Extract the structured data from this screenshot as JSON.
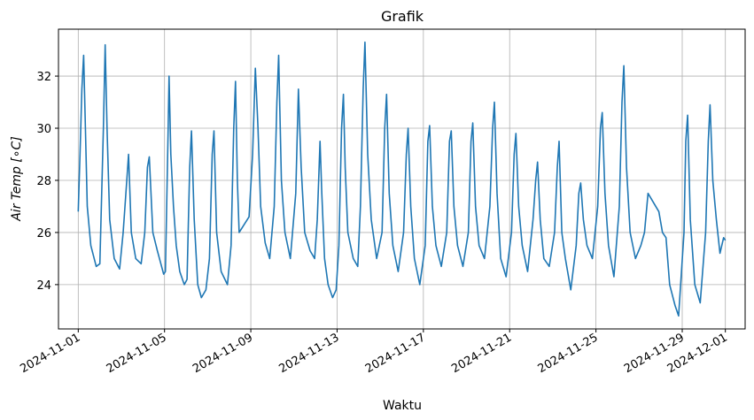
{
  "chart_data": {
    "type": "line",
    "title": "Grafik",
    "xlabel": "Waktu",
    "ylabel": "Air Temp [∘C]",
    "xlim": [
      "2024-10-31T02:00",
      "2024-12-01T22:00"
    ],
    "ylim": [
      22.3,
      33.8
    ],
    "grid": true,
    "legend": "none",
    "x_ticks": [
      "2024-11-01",
      "2024-11-05",
      "2024-11-09",
      "2024-11-13",
      "2024-11-17",
      "2024-11-21",
      "2024-11-25",
      "2024-11-29",
      "2024-12-01"
    ],
    "y_ticks": [
      24,
      26,
      28,
      30,
      32
    ],
    "series": [
      {
        "color": "#1f77b4",
        "points": [
          [
            "2024-11-01T00:00",
            26.8
          ],
          [
            "2024-11-01T02:00",
            29.0
          ],
          [
            "2024-11-01T04:00",
            31.5
          ],
          [
            "2024-11-01T06:00",
            32.8
          ],
          [
            "2024-11-01T08:00",
            30.0
          ],
          [
            "2024-11-01T10:00",
            27.0
          ],
          [
            "2024-11-01T14:00",
            25.5
          ],
          [
            "2024-11-01T20:00",
            24.7
          ],
          [
            "2024-11-02T00:00",
            24.8
          ],
          [
            "2024-11-02T04:00",
            30.0
          ],
          [
            "2024-11-02T06:00",
            33.2
          ],
          [
            "2024-11-02T08:00",
            30.0
          ],
          [
            "2024-11-02T11:00",
            26.5
          ],
          [
            "2024-11-02T16:00",
            25.0
          ],
          [
            "2024-11-02T22:00",
            24.6
          ],
          [
            "2024-11-03T02:00",
            26.0
          ],
          [
            "2024-11-03T06:00",
            28.0
          ],
          [
            "2024-11-03T08:00",
            29.0
          ],
          [
            "2024-11-03T11:00",
            26.0
          ],
          [
            "2024-11-03T16:00",
            25.0
          ],
          [
            "2024-11-03T22:00",
            24.8
          ],
          [
            "2024-11-04T02:00",
            26.0
          ],
          [
            "2024-11-04T05:00",
            28.5
          ],
          [
            "2024-11-04T07:00",
            28.9
          ],
          [
            "2024-11-04T11:00",
            26.0
          ],
          [
            "2024-11-04T16:00",
            25.3
          ],
          [
            "2024-11-04T23:00",
            24.4
          ],
          [
            "2024-11-05T01:00",
            24.5
          ],
          [
            "2024-11-05T04:00",
            30.0
          ],
          [
            "2024-11-05T05:00",
            32.0
          ],
          [
            "2024-11-05T07:00",
            29.0
          ],
          [
            "2024-11-05T10:00",
            27.0
          ],
          [
            "2024-11-05T13:00",
            25.5
          ],
          [
            "2024-11-05T17:00",
            24.5
          ],
          [
            "2024-11-05T22:00",
            24.0
          ],
          [
            "2024-11-06T01:00",
            24.2
          ],
          [
            "2024-11-06T04:00",
            28.5
          ],
          [
            "2024-11-06T06:00",
            29.9
          ],
          [
            "2024-11-06T09:00",
            26.5
          ],
          [
            "2024-11-06T13:00",
            24.0
          ],
          [
            "2024-11-06T17:00",
            23.5
          ],
          [
            "2024-11-06T22:00",
            23.8
          ],
          [
            "2024-11-07T02:00",
            25.0
          ],
          [
            "2024-11-07T05:00",
            29.0
          ],
          [
            "2024-11-07T07:00",
            29.9
          ],
          [
            "2024-11-07T10:00",
            26.0
          ],
          [
            "2024-11-07T15:00",
            24.5
          ],
          [
            "2024-11-07T22:00",
            24.0
          ],
          [
            "2024-11-08T02:00",
            25.5
          ],
          [
            "2024-11-08T05:00",
            30.0
          ],
          [
            "2024-11-08T07:00",
            31.8
          ],
          [
            "2024-11-08T09:00",
            28.0
          ],
          [
            "2024-11-08T11:00",
            26.0
          ],
          [
            "2024-11-08T22:00",
            26.6
          ],
          [
            "2024-11-09T02:00",
            29.0
          ],
          [
            "2024-11-09T05:00",
            32.3
          ],
          [
            "2024-11-09T08:00",
            30.0
          ],
          [
            "2024-11-09T11:00",
            27.0
          ],
          [
            "2024-11-09T16:00",
            25.6
          ],
          [
            "2024-11-09T21:00",
            25.0
          ],
          [
            "2024-11-10T02:00",
            27.0
          ],
          [
            "2024-11-10T05:00",
            31.0
          ],
          [
            "2024-11-10T07:00",
            32.8
          ],
          [
            "2024-11-10T10:00",
            28.0
          ],
          [
            "2024-11-10T14:00",
            26.0
          ],
          [
            "2024-11-10T20:00",
            25.0
          ],
          [
            "2024-11-11T02:00",
            27.5
          ],
          [
            "2024-11-11T05:00",
            31.5
          ],
          [
            "2024-11-11T08:00",
            28.5
          ],
          [
            "2024-11-11T12:00",
            26.0
          ],
          [
            "2024-11-11T18:00",
            25.3
          ],
          [
            "2024-11-11T23:00",
            25.0
          ],
          [
            "2024-11-12T02:00",
            26.5
          ],
          [
            "2024-11-12T05:00",
            29.5
          ],
          [
            "2024-11-12T07:00",
            27.5
          ],
          [
            "2024-11-12T10:00",
            25.0
          ],
          [
            "2024-11-12T14:00",
            24.0
          ],
          [
            "2024-11-12T19:00",
            23.5
          ],
          [
            "2024-11-12T23:00",
            23.8
          ],
          [
            "2024-11-13T02:00",
            25.5
          ],
          [
            "2024-11-13T05:00",
            30.0
          ],
          [
            "2024-11-13T07:00",
            31.3
          ],
          [
            "2024-11-13T09:00",
            28.5
          ],
          [
            "2024-11-13T12:00",
            26.0
          ],
          [
            "2024-11-13T18:00",
            25.0
          ],
          [
            "2024-11-13T23:00",
            24.7
          ],
          [
            "2024-11-14T02:00",
            27.0
          ],
          [
            "2024-11-14T05:00",
            31.5
          ],
          [
            "2024-11-14T07:00",
            33.3
          ],
          [
            "2024-11-14T10:00",
            29.0
          ],
          [
            "2024-11-14T14:00",
            26.5
          ],
          [
            "2024-11-14T20:00",
            25.0
          ],
          [
            "2024-11-15T02:00",
            26.0
          ],
          [
            "2024-11-15T05:00",
            30.0
          ],
          [
            "2024-11-15T07:00",
            31.3
          ],
          [
            "2024-11-15T10:00",
            27.5
          ],
          [
            "2024-11-15T14:00",
            25.5
          ],
          [
            "2024-11-15T20:00",
            24.5
          ],
          [
            "2024-11-16T02:00",
            26.0
          ],
          [
            "2024-11-16T05:00",
            29.0
          ],
          [
            "2024-11-16T07:00",
            30.0
          ],
          [
            "2024-11-16T10:00",
            27.0
          ],
          [
            "2024-11-16T14:00",
            25.0
          ],
          [
            "2024-11-16T20:00",
            24.0
          ],
          [
            "2024-11-17T02:00",
            25.5
          ],
          [
            "2024-11-17T05:00",
            29.5
          ],
          [
            "2024-11-17T07:00",
            30.1
          ],
          [
            "2024-11-17T10:00",
            27.0
          ],
          [
            "2024-11-17T14:00",
            25.5
          ],
          [
            "2024-11-17T20:00",
            24.7
          ],
          [
            "2024-11-18T02:00",
            26.0
          ],
          [
            "2024-11-18T05:00",
            29.5
          ],
          [
            "2024-11-18T07:00",
            29.9
          ],
          [
            "2024-11-18T10:00",
            27.0
          ],
          [
            "2024-11-18T14:00",
            25.5
          ],
          [
            "2024-11-18T20:00",
            24.7
          ],
          [
            "2024-11-19T02:00",
            26.0
          ],
          [
            "2024-11-19T05:00",
            29.5
          ],
          [
            "2024-11-19T07:00",
            30.2
          ],
          [
            "2024-11-19T10:00",
            27.0
          ],
          [
            "2024-11-19T14:00",
            25.5
          ],
          [
            "2024-11-19T20:00",
            25.0
          ],
          [
            "2024-11-20T02:00",
            27.0
          ],
          [
            "2024-11-20T05:00",
            30.0
          ],
          [
            "2024-11-20T07:00",
            31.0
          ],
          [
            "2024-11-20T10:00",
            27.5
          ],
          [
            "2024-11-20T14:00",
            25.0
          ],
          [
            "2024-11-20T20:00",
            24.3
          ],
          [
            "2024-11-21T02:00",
            26.0
          ],
          [
            "2024-11-21T05:00",
            29.0
          ],
          [
            "2024-11-21T07:00",
            29.8
          ],
          [
            "2024-11-21T10:00",
            27.0
          ],
          [
            "2024-11-21T14:00",
            25.5
          ],
          [
            "2024-11-21T20:00",
            24.5
          ],
          [
            "2024-11-22T02:00",
            26.5
          ],
          [
            "2024-11-22T05:00",
            28.0
          ],
          [
            "2024-11-22T07:00",
            28.7
          ],
          [
            "2024-11-22T10:00",
            26.5
          ],
          [
            "2024-11-22T14:00",
            25.0
          ],
          [
            "2024-11-22T20:00",
            24.7
          ],
          [
            "2024-11-23T02:00",
            26.0
          ],
          [
            "2024-11-23T05:00",
            28.5
          ],
          [
            "2024-11-23T07:00",
            29.5
          ],
          [
            "2024-11-23T10:00",
            26.0
          ],
          [
            "2024-11-23T14:00",
            25.0
          ],
          [
            "2024-11-23T20:00",
            23.8
          ],
          [
            "2024-11-24T02:00",
            25.5
          ],
          [
            "2024-11-24T05:00",
            27.5
          ],
          [
            "2024-11-24T07:00",
            27.9
          ],
          [
            "2024-11-24T10:00",
            26.5
          ],
          [
            "2024-11-24T14:00",
            25.5
          ],
          [
            "2024-11-24T20:00",
            25.0
          ],
          [
            "2024-11-25T02:00",
            27.0
          ],
          [
            "2024-11-25T05:00",
            30.0
          ],
          [
            "2024-11-25T07:00",
            30.6
          ],
          [
            "2024-11-25T10:00",
            27.5
          ],
          [
            "2024-11-25T14:00",
            25.5
          ],
          [
            "2024-11-25T20:00",
            24.3
          ],
          [
            "2024-11-26T02:00",
            27.0
          ],
          [
            "2024-11-26T05:00",
            31.0
          ],
          [
            "2024-11-26T07:00",
            32.4
          ],
          [
            "2024-11-26T10:00",
            28.5
          ],
          [
            "2024-11-26T14:00",
            26.0
          ],
          [
            "2024-11-26T20:00",
            25.0
          ],
          [
            "2024-11-27T02:00",
            25.5
          ],
          [
            "2024-11-27T06:00",
            26.0
          ],
          [
            "2024-11-27T10:00",
            27.5
          ],
          [
            "2024-11-27T22:00",
            26.8
          ],
          [
            "2024-11-28T02:00",
            26.0
          ],
          [
            "2024-11-28T06:00",
            25.8
          ],
          [
            "2024-11-28T10:00",
            24.0
          ],
          [
            "2024-11-28T16:00",
            23.2
          ],
          [
            "2024-11-28T20:00",
            22.8
          ],
          [
            "2024-11-29T02:00",
            26.0
          ],
          [
            "2024-11-29T04:00",
            29.5
          ],
          [
            "2024-11-29T06:00",
            30.5
          ],
          [
            "2024-11-29T09:00",
            26.5
          ],
          [
            "2024-11-29T14:00",
            24.0
          ],
          [
            "2024-11-29T20:00",
            23.3
          ],
          [
            "2024-11-30T02:00",
            26.0
          ],
          [
            "2024-11-30T05:00",
            29.5
          ],
          [
            "2024-11-30T07:00",
            30.9
          ],
          [
            "2024-11-30T10:00",
            28.0
          ],
          [
            "2024-11-30T14:00",
            26.5
          ],
          [
            "2024-11-30T18:00",
            25.2
          ],
          [
            "2024-11-30T22:00",
            25.8
          ],
          [
            "2024-12-01T00:00",
            25.7
          ]
        ]
      }
    ]
  }
}
